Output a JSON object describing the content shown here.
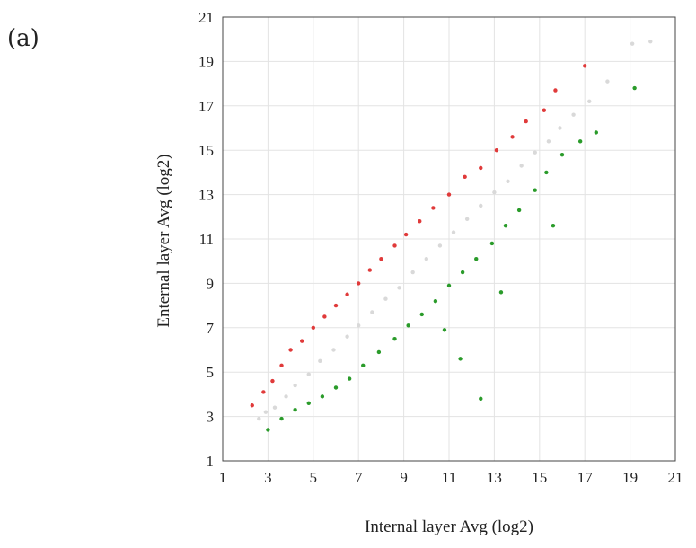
{
  "panel_label": "(a)",
  "chart_data": {
    "type": "scatter",
    "title": "",
    "xlabel": "Internal layer Avg (log2)",
    "ylabel": "Enternal layer  Avg (log2)",
    "xlim": [
      1,
      21
    ],
    "ylim": [
      1,
      21
    ],
    "xticks": [
      "1",
      "3",
      "5",
      "7",
      "9",
      "11",
      "13",
      "15",
      "17",
      "19",
      "21"
    ],
    "yticks": [
      "1",
      "3",
      "5",
      "7",
      "9",
      "11",
      "13",
      "15",
      "17",
      "19",
      "21"
    ],
    "grid": true,
    "legend": "none",
    "series": [
      {
        "color": "#d9d9d9",
        "description_values": [
          [
            2.6,
            2.9
          ],
          [
            2.9,
            3.2
          ],
          [
            3.3,
            3.4
          ],
          [
            3.8,
            3.9
          ],
          [
            4.2,
            4.4
          ],
          [
            4.8,
            4.9
          ],
          [
            5.3,
            5.5
          ],
          [
            5.9,
            6.0
          ],
          [
            6.5,
            6.6
          ],
          [
            7.0,
            7.1
          ],
          [
            7.6,
            7.7
          ],
          [
            8.2,
            8.3
          ],
          [
            8.8,
            8.8
          ],
          [
            9.4,
            9.5
          ],
          [
            10.0,
            10.1
          ],
          [
            10.6,
            10.7
          ],
          [
            11.2,
            11.3
          ],
          [
            11.8,
            11.9
          ],
          [
            12.4,
            12.5
          ],
          [
            13.0,
            13.1
          ],
          [
            13.6,
            13.6
          ],
          [
            14.2,
            14.3
          ],
          [
            14.8,
            14.9
          ],
          [
            15.4,
            15.4
          ],
          [
            15.9,
            16.0
          ],
          [
            16.5,
            16.6
          ],
          [
            17.2,
            17.2
          ],
          [
            18.0,
            18.1
          ],
          [
            19.1,
            19.8
          ],
          [
            19.9,
            19.9
          ]
        ]
      },
      {
        "color": "#e03a3a",
        "description_values": [
          [
            2.3,
            3.5
          ],
          [
            2.8,
            4.1
          ],
          [
            3.2,
            4.6
          ],
          [
            3.6,
            5.3
          ],
          [
            4.0,
            6.0
          ],
          [
            4.5,
            6.4
          ],
          [
            5.0,
            7.0
          ],
          [
            5.5,
            7.5
          ],
          [
            6.0,
            8.0
          ],
          [
            6.5,
            8.5
          ],
          [
            7.0,
            9.0
          ],
          [
            7.5,
            9.6
          ],
          [
            8.0,
            10.1
          ],
          [
            8.6,
            10.7
          ],
          [
            9.1,
            11.2
          ],
          [
            9.7,
            11.8
          ],
          [
            10.3,
            12.4
          ],
          [
            11.0,
            13.0
          ],
          [
            11.7,
            13.8
          ],
          [
            12.4,
            14.2
          ],
          [
            13.1,
            15.0
          ],
          [
            13.8,
            15.6
          ],
          [
            14.4,
            16.3
          ],
          [
            15.2,
            16.8
          ],
          [
            15.7,
            17.7
          ],
          [
            17.0,
            18.8
          ]
        ]
      },
      {
        "color": "#2a9b2a",
        "description_values": [
          [
            3.0,
            2.4
          ],
          [
            3.6,
            2.9
          ],
          [
            4.2,
            3.3
          ],
          [
            4.8,
            3.6
          ],
          [
            5.4,
            3.9
          ],
          [
            6.0,
            4.3
          ],
          [
            6.6,
            4.7
          ],
          [
            7.2,
            5.3
          ],
          [
            7.9,
            5.9
          ],
          [
            8.6,
            6.5
          ],
          [
            9.2,
            7.1
          ],
          [
            9.8,
            7.6
          ],
          [
            10.4,
            8.2
          ],
          [
            11.0,
            8.9
          ],
          [
            11.6,
            9.5
          ],
          [
            12.2,
            10.1
          ],
          [
            12.9,
            10.8
          ],
          [
            13.5,
            11.6
          ],
          [
            14.1,
            12.3
          ],
          [
            14.8,
            13.2
          ],
          [
            15.3,
            14.0
          ],
          [
            16.0,
            14.8
          ],
          [
            16.8,
            15.4
          ],
          [
            17.5,
            15.8
          ],
          [
            19.2,
            17.8
          ],
          [
            11.5,
            5.6
          ],
          [
            12.4,
            3.8
          ],
          [
            10.8,
            6.9
          ],
          [
            15.6,
            11.6
          ],
          [
            13.3,
            8.6
          ]
        ]
      }
    ]
  },
  "colors": {
    "grid": "#e3e3e3",
    "axis": "#444444"
  }
}
